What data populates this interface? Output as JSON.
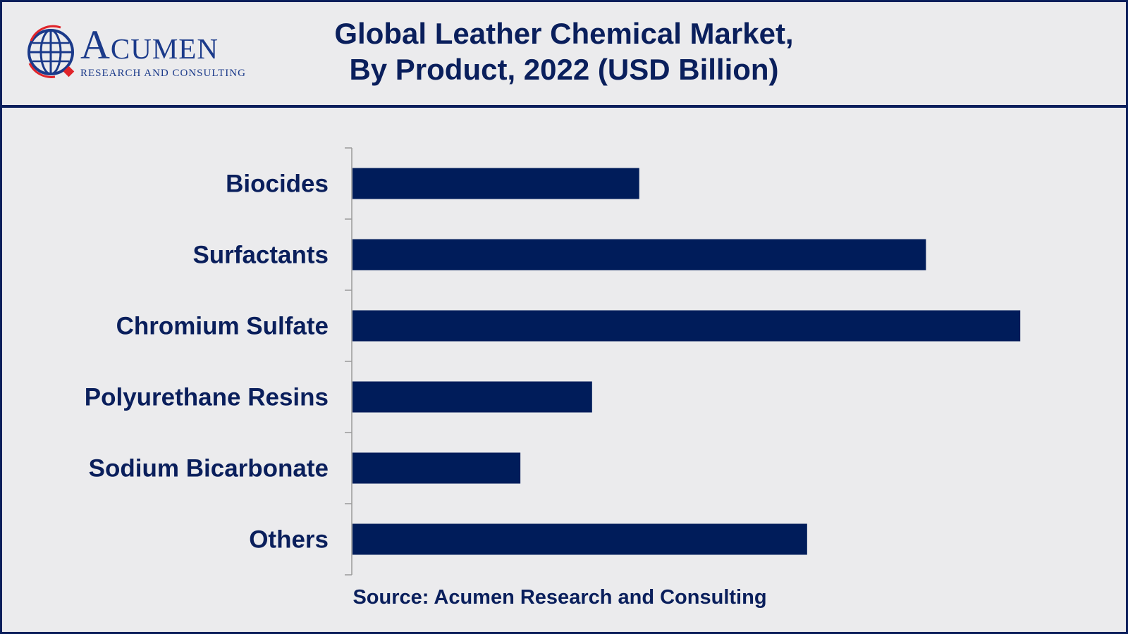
{
  "header": {
    "brand": "Acumen",
    "brand_sub": "RESEARCH AND CONSULTING",
    "title_line1": "Global Leather Chemical Market,",
    "title_line2": "By Product, 2022 (USD Billion)"
  },
  "colors": {
    "bar": "#001c5a",
    "text": "#0a1f5c",
    "background": "#ebebed",
    "logo_blue": "#1b3a8a",
    "logo_red": "#e0242a"
  },
  "chart_data": {
    "type": "bar",
    "orientation": "horizontal",
    "title": "Global Leather Chemical Market, By Product, 2022 (USD Billion)",
    "categories": [
      "Biocides",
      "Surfactants",
      "Chromium Sulfate",
      "Polyurethane Resins",
      "Sodium Bicarbonate",
      "Others"
    ],
    "values": [
      1.52,
      3.04,
      3.54,
      1.27,
      0.89,
      2.41
    ],
    "xlim": [
      0,
      3.7
    ],
    "xaxis_visible": false,
    "grid": false,
    "legend": "none"
  },
  "footer": {
    "source": "Source: Acumen Research and Consulting"
  }
}
